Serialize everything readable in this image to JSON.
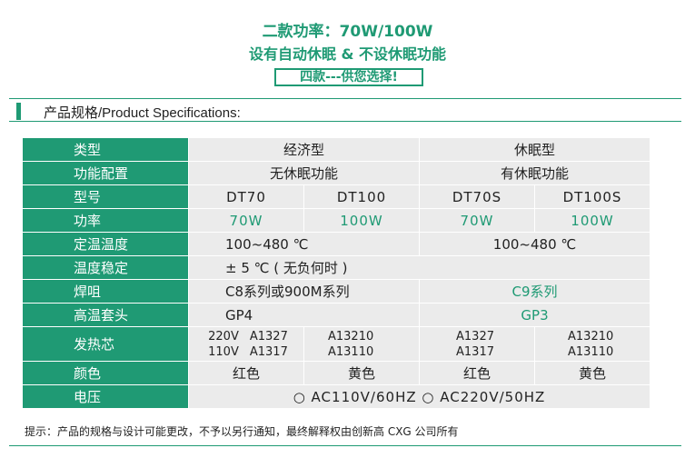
{
  "header": {
    "line1": "二款功率：70W/100W",
    "line2": "设有自动休眠 & 不设休眠功能",
    "line3": "四款---供您选择!"
  },
  "section_title": "产品规格/Product Specifications:",
  "table": {
    "row_type": {
      "label": "类型",
      "economy": "经济型",
      "sleep": "休眠型"
    },
    "row_function": {
      "label": "功能配置",
      "economy": "无休眠功能",
      "sleep": "有休眠功能"
    },
    "row_model": {
      "label": "型号",
      "m1": "DT70",
      "m2": "DT100",
      "m3": "DT70S",
      "m4": "DT100S"
    },
    "row_power": {
      "label": "功率",
      "p1": "70W",
      "p2": "100W",
      "p3": "70W",
      "p4": "100W"
    },
    "row_temp": {
      "label": "定温温度",
      "economy": "100~480 ℃",
      "sleep": "100~480 ℃"
    },
    "row_stability": {
      "label": "温度稳定",
      "value": "± 5 ℃ ( 无负何时 )"
    },
    "row_iron": {
      "label": "焊咀",
      "economy": "C8系列或900M系列",
      "sleep": "C9系列"
    },
    "row_sleeve": {
      "label": "高温套头",
      "economy": "GP4",
      "sleep": "GP3"
    },
    "row_heater": {
      "label": "发热芯",
      "v220": "220V",
      "v110": "110V",
      "e220a": "A1327",
      "e110a": "A1317",
      "e220b": "A13210",
      "e110b": "A13110",
      "s220a": "A1327",
      "s110a": "A1317",
      "s220b": "A13210",
      "s110b": "A13110"
    },
    "row_color": {
      "label": "颜色",
      "c1": "红色",
      "c2": "黄色",
      "c3": "红色",
      "c4": "黄色"
    },
    "row_voltage": {
      "label": "电压",
      "value": "○ AC110V/60HZ  ○ AC220V/50HZ"
    }
  },
  "note": "提示：产品的规格与设计可能更改，不予以另行通知，最终解释权由创新高 CXG 公司所有",
  "colors": {
    "accent": "#1f9a74",
    "cell_bg": "#ebebeb"
  }
}
